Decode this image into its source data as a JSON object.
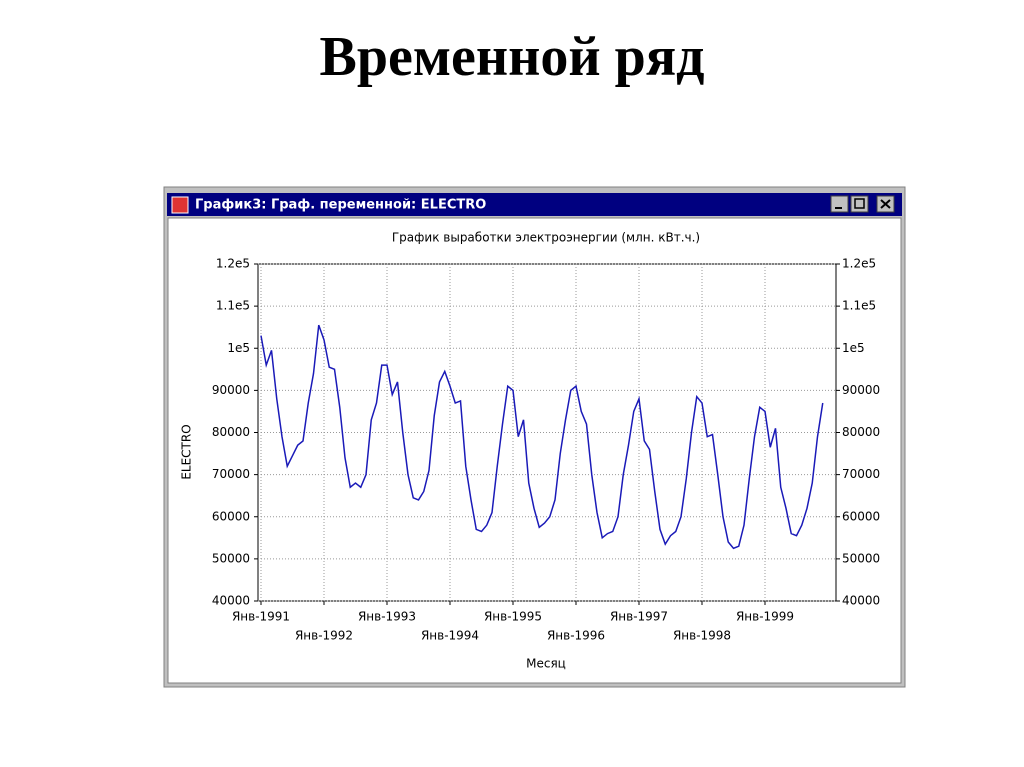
{
  "slide_title": "Временной ряд",
  "window_title": "График3: Граф. переменной: ELECTRO",
  "chart_data": {
    "type": "line",
    "title": "График выработки электроэнергии (млн. кВт.ч.)",
    "xlabel": "Месяц",
    "ylabel": "ELECTRO",
    "color": "#1a1ab8",
    "grid": true,
    "categories": [
      "Янв-1991",
      null,
      null,
      null,
      null,
      null,
      null,
      null,
      null,
      null,
      null,
      null,
      "Янв-1992",
      null,
      null,
      null,
      null,
      null,
      null,
      null,
      null,
      null,
      null,
      null,
      "Янв-1993",
      null,
      null,
      null,
      null,
      null,
      null,
      null,
      null,
      null,
      null,
      null,
      "Янв-1994",
      null,
      null,
      null,
      null,
      null,
      null,
      null,
      null,
      null,
      null,
      null,
      "Янв-1995",
      null,
      null,
      null,
      null,
      null,
      null,
      null,
      null,
      null,
      null,
      null,
      "Янв-1996",
      null,
      null,
      null,
      null,
      null,
      null,
      null,
      null,
      null,
      null,
      null,
      "Янв-1997",
      null,
      null,
      null,
      null,
      null,
      null,
      null,
      null,
      null,
      null,
      null,
      "Янв-1998",
      null,
      null,
      null,
      null,
      null,
      null,
      null,
      null,
      null,
      null,
      null,
      "Янв-1999",
      null,
      null,
      null,
      null,
      null,
      null,
      null,
      null,
      null,
      null,
      null
    ],
    "values": [
      103000,
      96000,
      99500,
      88000,
      79000,
      72000,
      74500,
      77000,
      78000,
      87000,
      94000,
      105500,
      102000,
      95500,
      95000,
      86000,
      74000,
      67000,
      68000,
      67000,
      70000,
      83000,
      87000,
      96000,
      96000,
      89000,
      92000,
      80000,
      70000,
      64500,
      64000,
      66000,
      71000,
      84000,
      92000,
      94500,
      91000,
      87000,
      87500,
      72000,
      64000,
      57000,
      56500,
      58000,
      61000,
      72000,
      82000,
      91000,
      90000,
      79000,
      83000,
      68000,
      62000,
      57500,
      58500,
      60000,
      64000,
      75000,
      83000,
      90000,
      91000,
      85000,
      82000,
      70000,
      61000,
      55000,
      56000,
      56500,
      60000,
      70000,
      77000,
      85000,
      88000,
      78000,
      76000,
      66000,
      57000,
      53500,
      55500,
      56500,
      60000,
      69000,
      80000,
      88500,
      87000,
      79000,
      79500,
      70000,
      60000,
      54000,
      52500,
      53000,
      58000,
      69000,
      79000,
      86000,
      85000,
      76500,
      81000,
      67000,
      62000,
      56000,
      55500,
      58000,
      62000,
      68000,
      79000,
      87000
    ],
    "ylim": [
      40000,
      120000
    ],
    "yticks": [
      40000,
      50000,
      60000,
      70000,
      80000,
      90000,
      {
        "value": 100000,
        "label": "1e5"
      },
      {
        "value": 110000,
        "label": "1.1e5"
      },
      {
        "value": 120000,
        "label": "1.2e5"
      }
    ],
    "y2lim": [
      40000,
      120000
    ],
    "y2ticks": [
      40000,
      50000,
      60000,
      70000,
      80000,
      90000,
      {
        "value": 100000,
        "label": "1e5"
      },
      {
        "value": 110000,
        "label": "1.1e5"
      },
      {
        "value": 120000,
        "label": "1.2e5"
      }
    ]
  }
}
